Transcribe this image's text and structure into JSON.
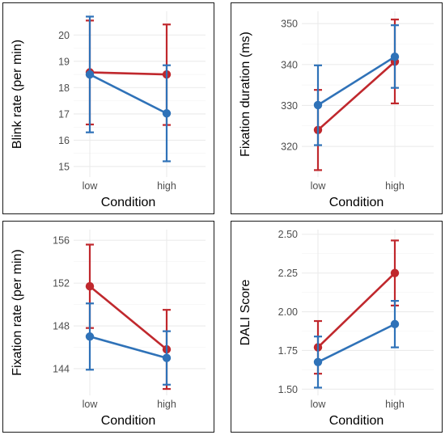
{
  "colors": {
    "series_red": "#c0282d",
    "series_blue": "#2f72b8",
    "grid": "#ebebeb"
  },
  "chart_data": [
    {
      "type": "line",
      "xlabel": "Condition",
      "ylabel": "Blink rate (per min)",
      "categories": [
        "low",
        "high"
      ],
      "ylim": [
        14.6,
        20.9
      ],
      "yticks": [
        "15",
        "16",
        "17",
        "18",
        "19",
        "20"
      ],
      "grid": true,
      "series": [
        {
          "color": "#c0282d",
          "values": [
            18.58,
            18.5
          ],
          "error_low": [
            16.6,
            16.58
          ],
          "error_high": [
            20.55,
            20.4
          ]
        },
        {
          "color": "#2f72b8",
          "values": [
            18.5,
            17.02
          ],
          "error_low": [
            16.3,
            15.2
          ],
          "error_high": [
            20.7,
            18.85
          ]
        }
      ]
    },
    {
      "type": "line",
      "xlabel": "Condition",
      "ylabel": "Fixation duration (ms)",
      "categories": [
        "low",
        "high"
      ],
      "ylim": [
        312.5,
        353
      ],
      "yticks": [
        "320",
        "330",
        "340",
        "350"
      ],
      "grid": true,
      "series": [
        {
          "color": "#c0282d",
          "values": [
            324,
            340.7
          ],
          "error_low": [
            314.2,
            330.5
          ],
          "error_high": [
            333.8,
            351
          ]
        },
        {
          "color": "#2f72b8",
          "values": [
            330.1,
            341.9
          ],
          "error_low": [
            320.3,
            334.3
          ],
          "error_high": [
            339.8,
            349.6
          ]
        }
      ]
    },
    {
      "type": "line",
      "xlabel": "Condition",
      "ylabel": "Fixation rate (per min)",
      "categories": [
        "low",
        "high"
      ],
      "ylim": [
        141.5,
        157
      ],
      "yticks": [
        "144",
        "148",
        "152",
        "156"
      ],
      "grid": true,
      "series": [
        {
          "color": "#c0282d",
          "values": [
            151.7,
            145.8
          ],
          "error_low": [
            147.8,
            142.1
          ],
          "error_high": [
            155.6,
            149.5
          ]
        },
        {
          "color": "#2f72b8",
          "values": [
            147,
            145
          ],
          "error_low": [
            143.9,
            142.5
          ],
          "error_high": [
            150.1,
            147.5
          ]
        }
      ]
    },
    {
      "type": "line",
      "xlabel": "Condition",
      "ylabel": "DALI Score",
      "categories": [
        "low",
        "high"
      ],
      "ylim": [
        1.46,
        2.53
      ],
      "yticks": [
        "1.50",
        "1.75",
        "2.00",
        "2.25",
        "2.50"
      ],
      "grid": true,
      "series": [
        {
          "color": "#c0282d",
          "values": [
            1.77,
            2.25
          ],
          "error_low": [
            1.6,
            2.04
          ],
          "error_high": [
            1.94,
            2.46
          ]
        },
        {
          "color": "#2f72b8",
          "values": [
            1.675,
            1.92
          ],
          "error_low": [
            1.51,
            1.77
          ],
          "error_high": [
            1.84,
            2.07
          ]
        }
      ]
    }
  ]
}
